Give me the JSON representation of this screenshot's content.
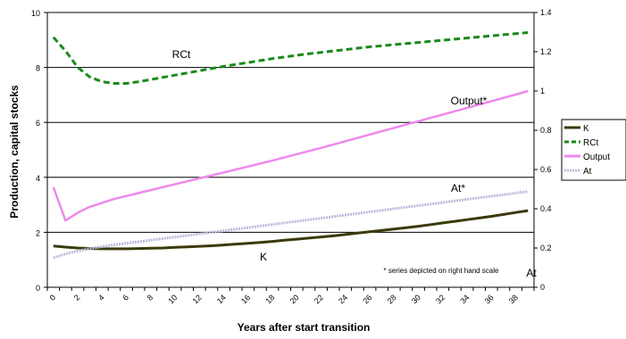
{
  "chart_data": {
    "type": "line",
    "xlabel": "Years after start transition",
    "ylabel": "Production, capital stocks",
    "x": [
      0,
      1,
      2,
      3,
      4,
      5,
      6,
      7,
      8,
      9,
      10,
      11,
      12,
      13,
      14,
      15,
      16,
      17,
      18,
      19,
      20,
      21,
      22,
      23,
      24,
      25,
      26,
      27,
      28,
      29,
      30,
      31,
      32,
      33,
      34,
      35,
      36,
      37,
      38,
      39
    ],
    "x_tick_labels": [
      "0",
      "2",
      "4",
      "6",
      "8",
      "10",
      "12",
      "14",
      "16",
      "18",
      "20",
      "22",
      "24",
      "26",
      "28",
      "30",
      "32",
      "34",
      "36",
      "38"
    ],
    "y_left": {
      "range": [
        0,
        10
      ],
      "ticks": [
        "0",
        "2",
        "4",
        "6",
        "8",
        "10"
      ]
    },
    "y_right": {
      "range": [
        0,
        1.4
      ],
      "ticks": [
        "0",
        "0.2",
        "0.4",
        "0.6",
        "0.8",
        "1",
        "1.2",
        "1.4"
      ]
    },
    "grid": "horizontal major gridlines",
    "legend_position": "right",
    "series": [
      {
        "name": "K",
        "axis": "left",
        "color": "#3a3a0a",
        "style": "solid",
        "values": [
          1.5,
          1.46,
          1.43,
          1.41,
          1.4,
          1.4,
          1.4,
          1.41,
          1.42,
          1.43,
          1.45,
          1.47,
          1.49,
          1.51,
          1.54,
          1.57,
          1.6,
          1.63,
          1.67,
          1.71,
          1.75,
          1.79,
          1.83,
          1.87,
          1.92,
          1.97,
          2.02,
          2.07,
          2.12,
          2.17,
          2.22,
          2.28,
          2.34,
          2.4,
          2.46,
          2.52,
          2.58,
          2.65,
          2.72,
          2.79
        ]
      },
      {
        "name": "RCt",
        "axis": "left",
        "color": "#1a8a1a",
        "style": "dashed",
        "values": [
          9.1,
          8.6,
          8.0,
          7.65,
          7.48,
          7.42,
          7.42,
          7.48,
          7.56,
          7.64,
          7.72,
          7.8,
          7.88,
          7.96,
          8.04,
          8.11,
          8.18,
          8.25,
          8.32,
          8.38,
          8.44,
          8.5,
          8.55,
          8.6,
          8.65,
          8.7,
          8.75,
          8.79,
          8.83,
          8.87,
          8.91,
          8.95,
          8.99,
          9.03,
          9.07,
          9.11,
          9.15,
          9.19,
          9.23,
          9.27
        ]
      },
      {
        "name": "Output",
        "axis": "right",
        "color": "#ee88ee",
        "style": "solid",
        "values": [
          0.51,
          0.34,
          0.38,
          0.41,
          0.43,
          0.45,
          0.465,
          0.48,
          0.495,
          0.51,
          0.525,
          0.54,
          0.555,
          0.57,
          0.585,
          0.6,
          0.615,
          0.63,
          0.646,
          0.662,
          0.678,
          0.694,
          0.71,
          0.727,
          0.744,
          0.761,
          0.778,
          0.795,
          0.812,
          0.829,
          0.846,
          0.863,
          0.88,
          0.897,
          0.914,
          0.931,
          0.948,
          0.965,
          0.982,
          1.0
        ]
      },
      {
        "name": "At",
        "axis": "right",
        "color": "#bbbbdd",
        "style": "dotted",
        "values": [
          0.15,
          0.17,
          0.185,
          0.197,
          0.207,
          0.216,
          0.224,
          0.232,
          0.24,
          0.248,
          0.256,
          0.264,
          0.272,
          0.28,
          0.288,
          0.296,
          0.304,
          0.312,
          0.32,
          0.328,
          0.336,
          0.344,
          0.352,
          0.36,
          0.368,
          0.376,
          0.384,
          0.392,
          0.4,
          0.408,
          0.416,
          0.424,
          0.432,
          0.44,
          0.448,
          0.456,
          0.464,
          0.472,
          0.48,
          0.488
        ]
      }
    ],
    "annotations": [
      {
        "text": "RCt"
      },
      {
        "text": "Output*"
      },
      {
        "text": "At*"
      },
      {
        "text": "K"
      },
      {
        "text": "* series depicted on right hand scale"
      },
      {
        "text": "At"
      }
    ]
  }
}
